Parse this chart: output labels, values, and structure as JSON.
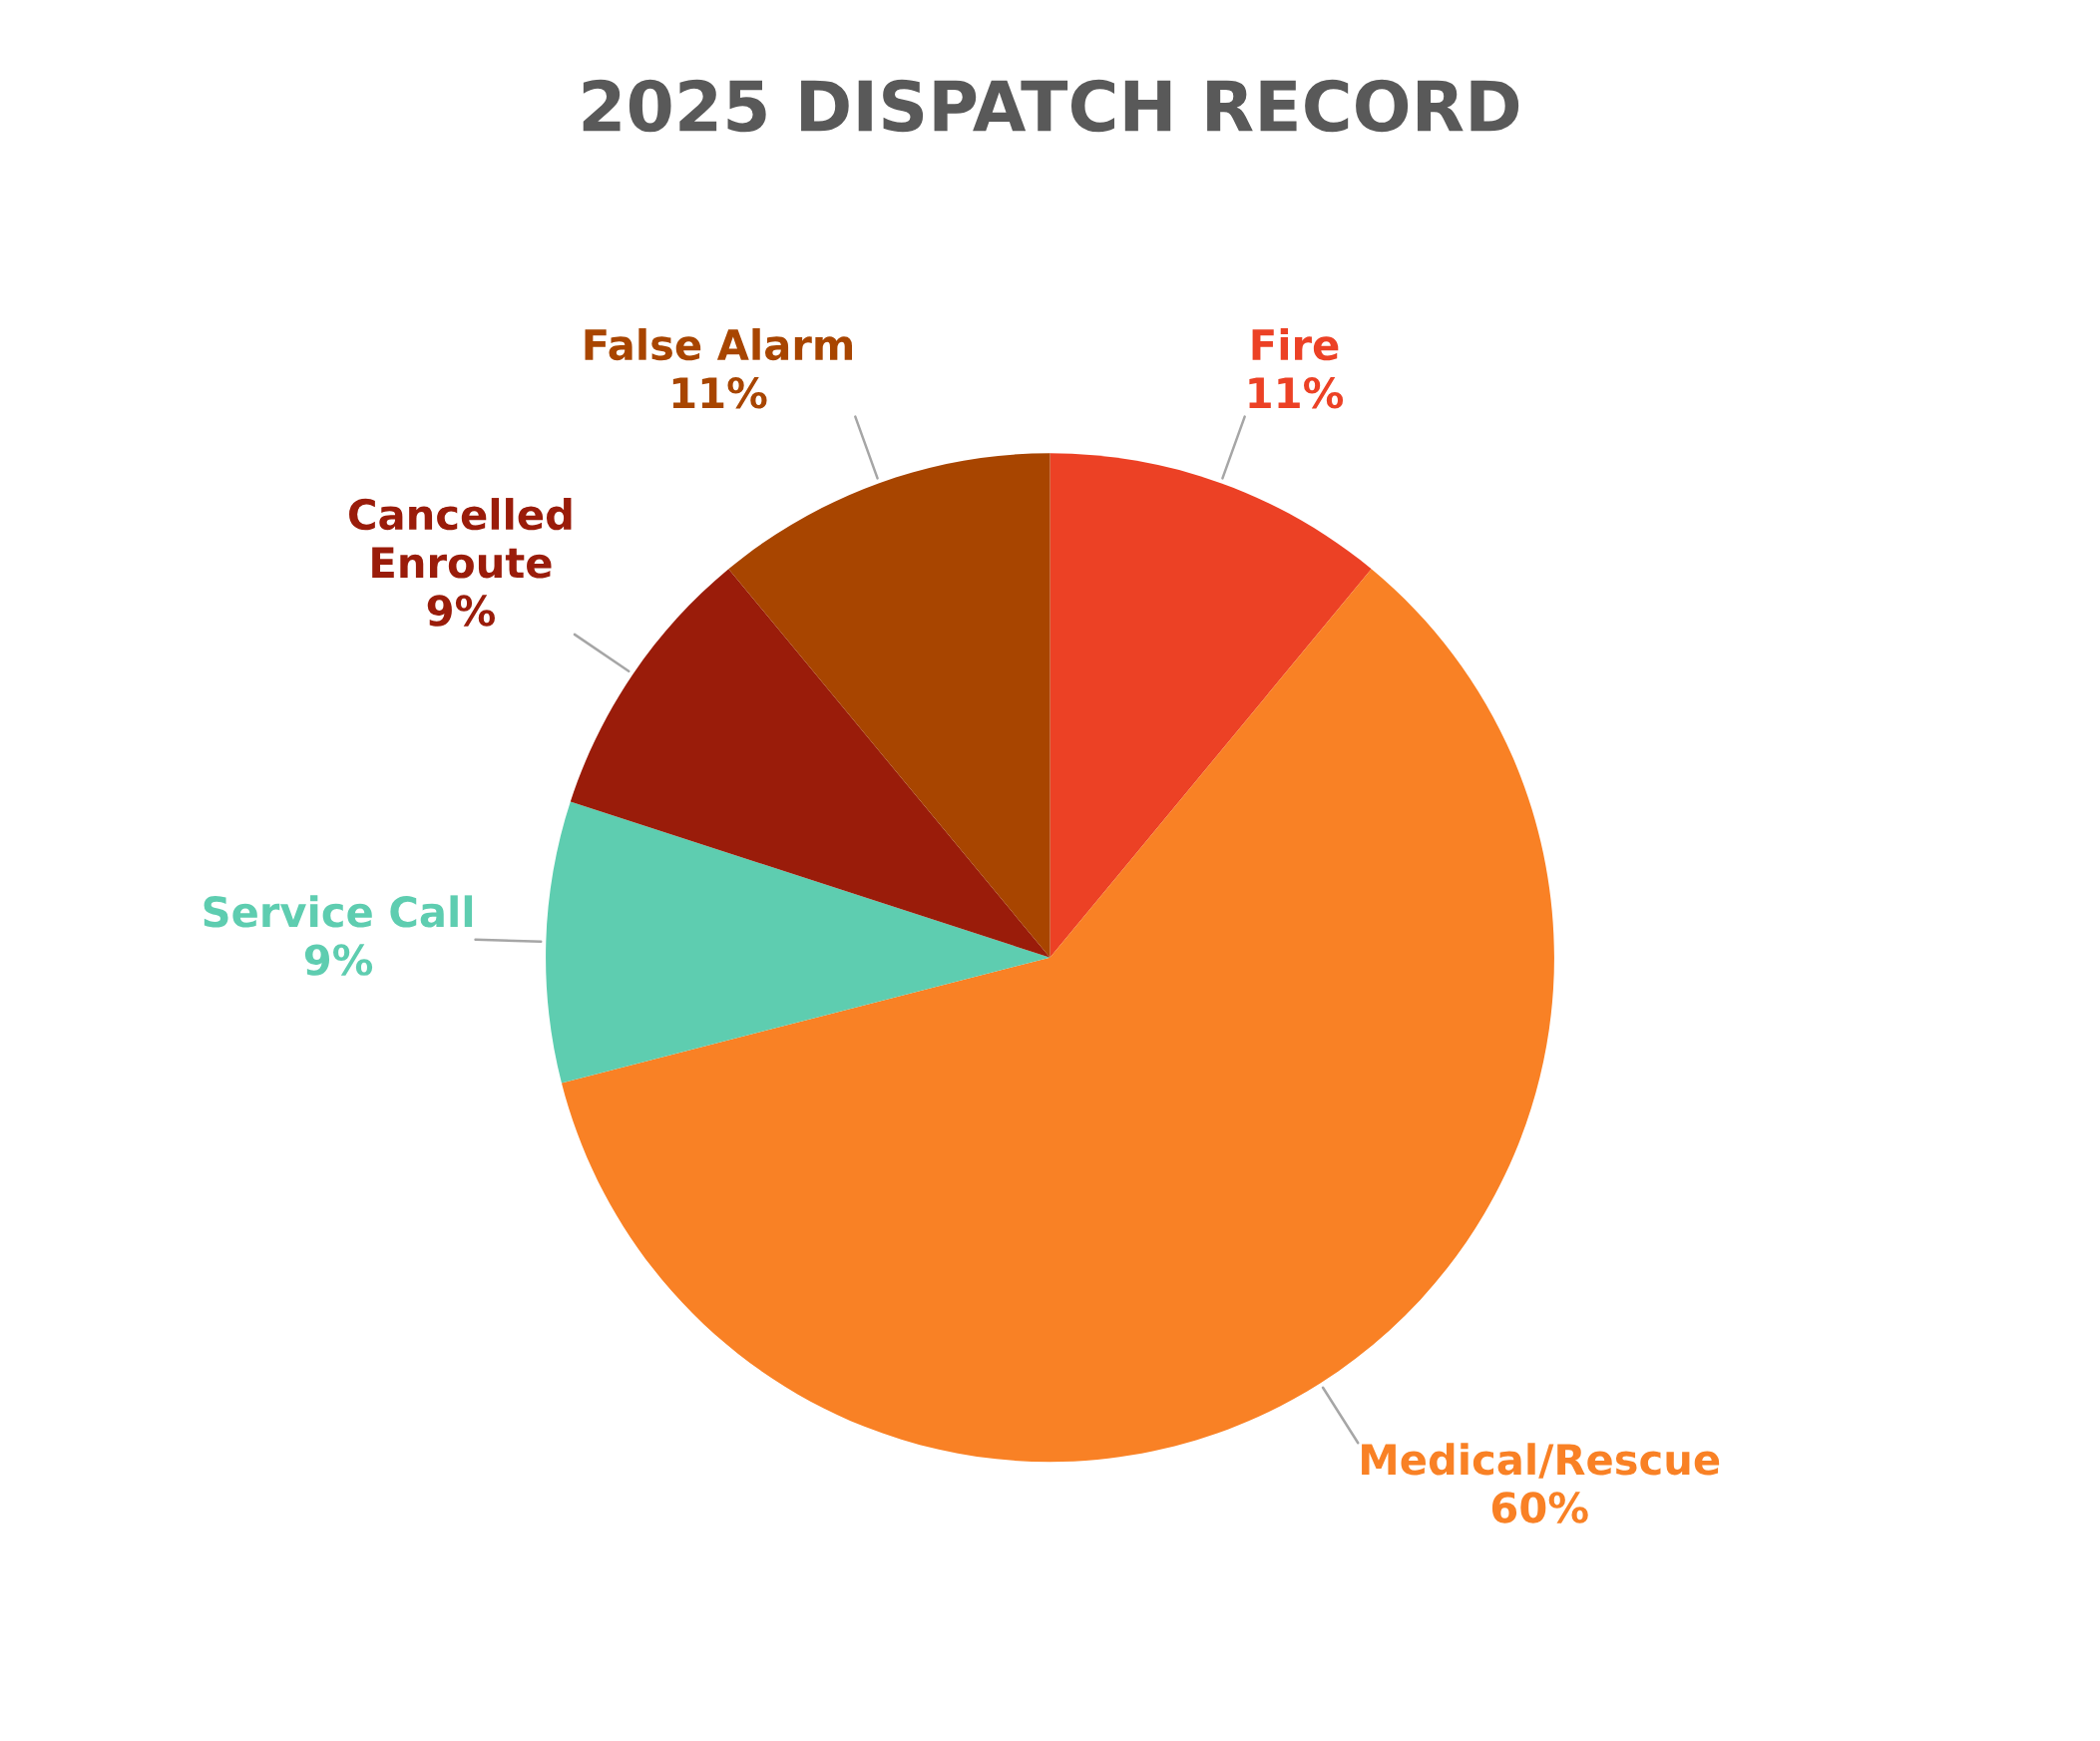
{
  "chart_data": {
    "type": "pie",
    "title": "2025 DISPATCH RECORD",
    "categories": [
      "Fire",
      "Medical/Rescue",
      "Service Call",
      "Cancelled\nEnroute",
      "False Alarm"
    ],
    "values": [
      11,
      60,
      9,
      9,
      11
    ],
    "colors": [
      "#ec4125",
      "#f98125",
      "#5ecdb0",
      "#9a1c0a",
      "#a84500"
    ],
    "value_labels": [
      "11%",
      "60%",
      "9%",
      "9%",
      "11%"
    ],
    "legend": false
  }
}
